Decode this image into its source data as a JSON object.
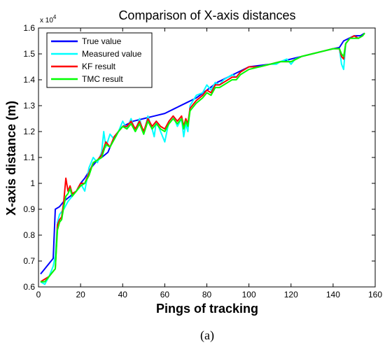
{
  "chart_data": {
    "type": "line",
    "title": "Comparison of X-axis distances",
    "xlabel": "Pings of tracking",
    "ylabel": "X-axis distance (m)",
    "y_exponent_prefix": "x 10",
    "y_exponent_power": "4",
    "xlim": [
      0,
      160
    ],
    "ylim": [
      0.6,
      1.6
    ],
    "x_ticks": [
      0,
      20,
      40,
      60,
      80,
      100,
      120,
      140,
      160
    ],
    "y_ticks": [
      0.6,
      0.7,
      0.8,
      0.9,
      1.0,
      1.1,
      1.2,
      1.3,
      1.4,
      1.5,
      1.6
    ],
    "x_tick_labels": [
      "0",
      "20",
      "40",
      "60",
      "80",
      "100",
      "120",
      "140",
      "160"
    ],
    "y_tick_labels": [
      "0.6",
      "0.7",
      "0.8",
      "0.9",
      "1",
      "1.1",
      "1.2",
      "1.3",
      "1.4",
      "1.5",
      "1.6"
    ],
    "grid": false,
    "legend_position": "top-left",
    "caption": "(a)",
    "series": [
      {
        "name": "True value",
        "color": "#0000ff",
        "points": [
          [
            1,
            0.65
          ],
          [
            3,
            0.67
          ],
          [
            7,
            0.71
          ],
          [
            8,
            0.9
          ],
          [
            10,
            0.91
          ],
          [
            12,
            0.93
          ],
          [
            15,
            0.95
          ],
          [
            18,
            0.97
          ],
          [
            20,
            1.0
          ],
          [
            22,
            1.02
          ],
          [
            25,
            1.06
          ],
          [
            28,
            1.09
          ],
          [
            30,
            1.1
          ],
          [
            33,
            1.12
          ],
          [
            36,
            1.18
          ],
          [
            40,
            1.22
          ],
          [
            45,
            1.24
          ],
          [
            50,
            1.25
          ],
          [
            55,
            1.26
          ],
          [
            60,
            1.27
          ],
          [
            65,
            1.29
          ],
          [
            70,
            1.31
          ],
          [
            75,
            1.33
          ],
          [
            80,
            1.36
          ],
          [
            85,
            1.39
          ],
          [
            90,
            1.41
          ],
          [
            95,
            1.43
          ],
          [
            100,
            1.45
          ],
          [
            105,
            1.455
          ],
          [
            110,
            1.46
          ],
          [
            115,
            1.47
          ],
          [
            120,
            1.48
          ],
          [
            125,
            1.49
          ],
          [
            130,
            1.5
          ],
          [
            135,
            1.51
          ],
          [
            140,
            1.52
          ],
          [
            143,
            1.525
          ],
          [
            145,
            1.55
          ],
          [
            150,
            1.57
          ],
          [
            153,
            1.57
          ],
          [
            155,
            1.58
          ]
        ]
      },
      {
        "name": "Measured value",
        "color": "#00ffff",
        "points": [
          [
            1,
            0.62
          ],
          [
            3,
            0.61
          ],
          [
            5,
            0.64
          ],
          [
            7,
            0.68
          ],
          [
            8,
            0.72
          ],
          [
            9,
            0.85
          ],
          [
            10,
            0.88
          ],
          [
            12,
            0.9
          ],
          [
            14,
            0.93
          ],
          [
            16,
            0.95
          ],
          [
            18,
            0.97
          ],
          [
            20,
            1.0
          ],
          [
            22,
            0.97
          ],
          [
            24,
            1.06
          ],
          [
            26,
            1.1
          ],
          [
            28,
            1.08
          ],
          [
            30,
            1.12
          ],
          [
            31,
            1.2
          ],
          [
            32,
            1.14
          ],
          [
            34,
            1.19
          ],
          [
            36,
            1.17
          ],
          [
            38,
            1.2
          ],
          [
            40,
            1.24
          ],
          [
            42,
            1.21
          ],
          [
            44,
            1.25
          ],
          [
            46,
            1.2
          ],
          [
            48,
            1.25
          ],
          [
            50,
            1.19
          ],
          [
            52,
            1.26
          ],
          [
            54,
            1.21
          ],
          [
            55,
            1.18
          ],
          [
            56,
            1.24
          ],
          [
            58,
            1.2
          ],
          [
            60,
            1.16
          ],
          [
            62,
            1.24
          ],
          [
            64,
            1.26
          ],
          [
            66,
            1.22
          ],
          [
            68,
            1.25
          ],
          [
            69,
            1.18
          ],
          [
            70,
            1.23
          ],
          [
            71,
            1.2
          ],
          [
            72,
            1.3
          ],
          [
            75,
            1.34
          ],
          [
            78,
            1.35
          ],
          [
            80,
            1.38
          ],
          [
            82,
            1.36
          ],
          [
            84,
            1.39
          ],
          [
            86,
            1.38
          ],
          [
            88,
            1.4
          ],
          [
            90,
            1.41
          ],
          [
            92,
            1.42
          ],
          [
            94,
            1.41
          ],
          [
            96,
            1.43
          ],
          [
            98,
            1.44
          ],
          [
            100,
            1.45
          ],
          [
            105,
            1.45
          ],
          [
            110,
            1.46
          ],
          [
            113,
            1.46
          ],
          [
            115,
            1.47
          ],
          [
            118,
            1.48
          ],
          [
            120,
            1.46
          ],
          [
            122,
            1.48
          ],
          [
            125,
            1.49
          ],
          [
            130,
            1.5
          ],
          [
            135,
            1.51
          ],
          [
            140,
            1.52
          ],
          [
            143,
            1.52
          ],
          [
            144,
            1.46
          ],
          [
            145,
            1.44
          ],
          [
            146,
            1.54
          ],
          [
            148,
            1.56
          ],
          [
            150,
            1.57
          ],
          [
            152,
            1.56
          ],
          [
            154,
            1.57
          ],
          [
            155,
            1.58
          ]
        ]
      },
      {
        "name": "KF result",
        "color": "#ff0000",
        "points": [
          [
            1,
            0.62
          ],
          [
            3,
            0.63
          ],
          [
            5,
            0.64
          ],
          [
            7,
            0.66
          ],
          [
            8,
            0.67
          ],
          [
            9,
            0.84
          ],
          [
            10,
            0.86
          ],
          [
            11,
            0.87
          ],
          [
            12,
            0.93
          ],
          [
            13,
            1.02
          ],
          [
            14,
            0.97
          ],
          [
            15,
            0.99
          ],
          [
            16,
            0.96
          ],
          [
            18,
            0.97
          ],
          [
            20,
            1.0
          ],
          [
            22,
            1.0
          ],
          [
            24,
            1.04
          ],
          [
            26,
            1.08
          ],
          [
            28,
            1.09
          ],
          [
            30,
            1.11
          ],
          [
            32,
            1.16
          ],
          [
            34,
            1.14
          ],
          [
            36,
            1.18
          ],
          [
            38,
            1.2
          ],
          [
            40,
            1.22
          ],
          [
            42,
            1.22
          ],
          [
            44,
            1.24
          ],
          [
            46,
            1.21
          ],
          [
            48,
            1.24
          ],
          [
            50,
            1.2
          ],
          [
            52,
            1.25
          ],
          [
            54,
            1.22
          ],
          [
            56,
            1.24
          ],
          [
            58,
            1.22
          ],
          [
            60,
            1.21
          ],
          [
            62,
            1.24
          ],
          [
            64,
            1.26
          ],
          [
            66,
            1.24
          ],
          [
            68,
            1.26
          ],
          [
            69,
            1.22
          ],
          [
            70,
            1.25
          ],
          [
            71,
            1.23
          ],
          [
            72,
            1.29
          ],
          [
            75,
            1.32
          ],
          [
            78,
            1.34
          ],
          [
            80,
            1.36
          ],
          [
            82,
            1.35
          ],
          [
            84,
            1.38
          ],
          [
            86,
            1.38
          ],
          [
            88,
            1.39
          ],
          [
            90,
            1.4
          ],
          [
            92,
            1.41
          ],
          [
            94,
            1.41
          ],
          [
            96,
            1.43
          ],
          [
            98,
            1.44
          ],
          [
            100,
            1.45
          ],
          [
            105,
            1.45
          ],
          [
            110,
            1.46
          ],
          [
            115,
            1.47
          ],
          [
            120,
            1.47
          ],
          [
            125,
            1.49
          ],
          [
            130,
            1.5
          ],
          [
            135,
            1.51
          ],
          [
            140,
            1.52
          ],
          [
            143,
            1.52
          ],
          [
            144,
            1.49
          ],
          [
            145,
            1.48
          ],
          [
            146,
            1.54
          ],
          [
            148,
            1.56
          ],
          [
            150,
            1.57
          ],
          [
            152,
            1.56
          ],
          [
            154,
            1.57
          ],
          [
            155,
            1.58
          ]
        ]
      },
      {
        "name": "TMC result",
        "color": "#00ff00",
        "points": [
          [
            1,
            0.62
          ],
          [
            3,
            0.62
          ],
          [
            5,
            0.64
          ],
          [
            7,
            0.66
          ],
          [
            8,
            0.67
          ],
          [
            9,
            0.82
          ],
          [
            10,
            0.85
          ],
          [
            11,
            0.86
          ],
          [
            12,
            0.91
          ],
          [
            13,
            0.95
          ],
          [
            14,
            0.96
          ],
          [
            15,
            0.98
          ],
          [
            16,
            0.95
          ],
          [
            18,
            0.97
          ],
          [
            20,
            0.99
          ],
          [
            22,
            1.0
          ],
          [
            24,
            1.03
          ],
          [
            26,
            1.08
          ],
          [
            28,
            1.09
          ],
          [
            30,
            1.1
          ],
          [
            32,
            1.15
          ],
          [
            34,
            1.14
          ],
          [
            36,
            1.17
          ],
          [
            38,
            1.2
          ],
          [
            40,
            1.22
          ],
          [
            42,
            1.21
          ],
          [
            44,
            1.23
          ],
          [
            46,
            1.2
          ],
          [
            48,
            1.23
          ],
          [
            50,
            1.19
          ],
          [
            52,
            1.24
          ],
          [
            54,
            1.21
          ],
          [
            56,
            1.23
          ],
          [
            58,
            1.21
          ],
          [
            60,
            1.2
          ],
          [
            62,
            1.23
          ],
          [
            64,
            1.25
          ],
          [
            66,
            1.23
          ],
          [
            68,
            1.25
          ],
          [
            69,
            1.21
          ],
          [
            70,
            1.24
          ],
          [
            71,
            1.22
          ],
          [
            72,
            1.28
          ],
          [
            75,
            1.31
          ],
          [
            78,
            1.33
          ],
          [
            80,
            1.35
          ],
          [
            82,
            1.34
          ],
          [
            84,
            1.37
          ],
          [
            86,
            1.37
          ],
          [
            88,
            1.38
          ],
          [
            90,
            1.39
          ],
          [
            92,
            1.4
          ],
          [
            94,
            1.4
          ],
          [
            96,
            1.42
          ],
          [
            98,
            1.43
          ],
          [
            100,
            1.44
          ],
          [
            105,
            1.45
          ],
          [
            110,
            1.46
          ],
          [
            115,
            1.47
          ],
          [
            120,
            1.47
          ],
          [
            125,
            1.49
          ],
          [
            130,
            1.5
          ],
          [
            135,
            1.51
          ],
          [
            140,
            1.52
          ],
          [
            143,
            1.52
          ],
          [
            144,
            1.5
          ],
          [
            145,
            1.49
          ],
          [
            146,
            1.54
          ],
          [
            148,
            1.56
          ],
          [
            150,
            1.56
          ],
          [
            152,
            1.56
          ],
          [
            154,
            1.57
          ],
          [
            155,
            1.58
          ]
        ]
      }
    ]
  }
}
